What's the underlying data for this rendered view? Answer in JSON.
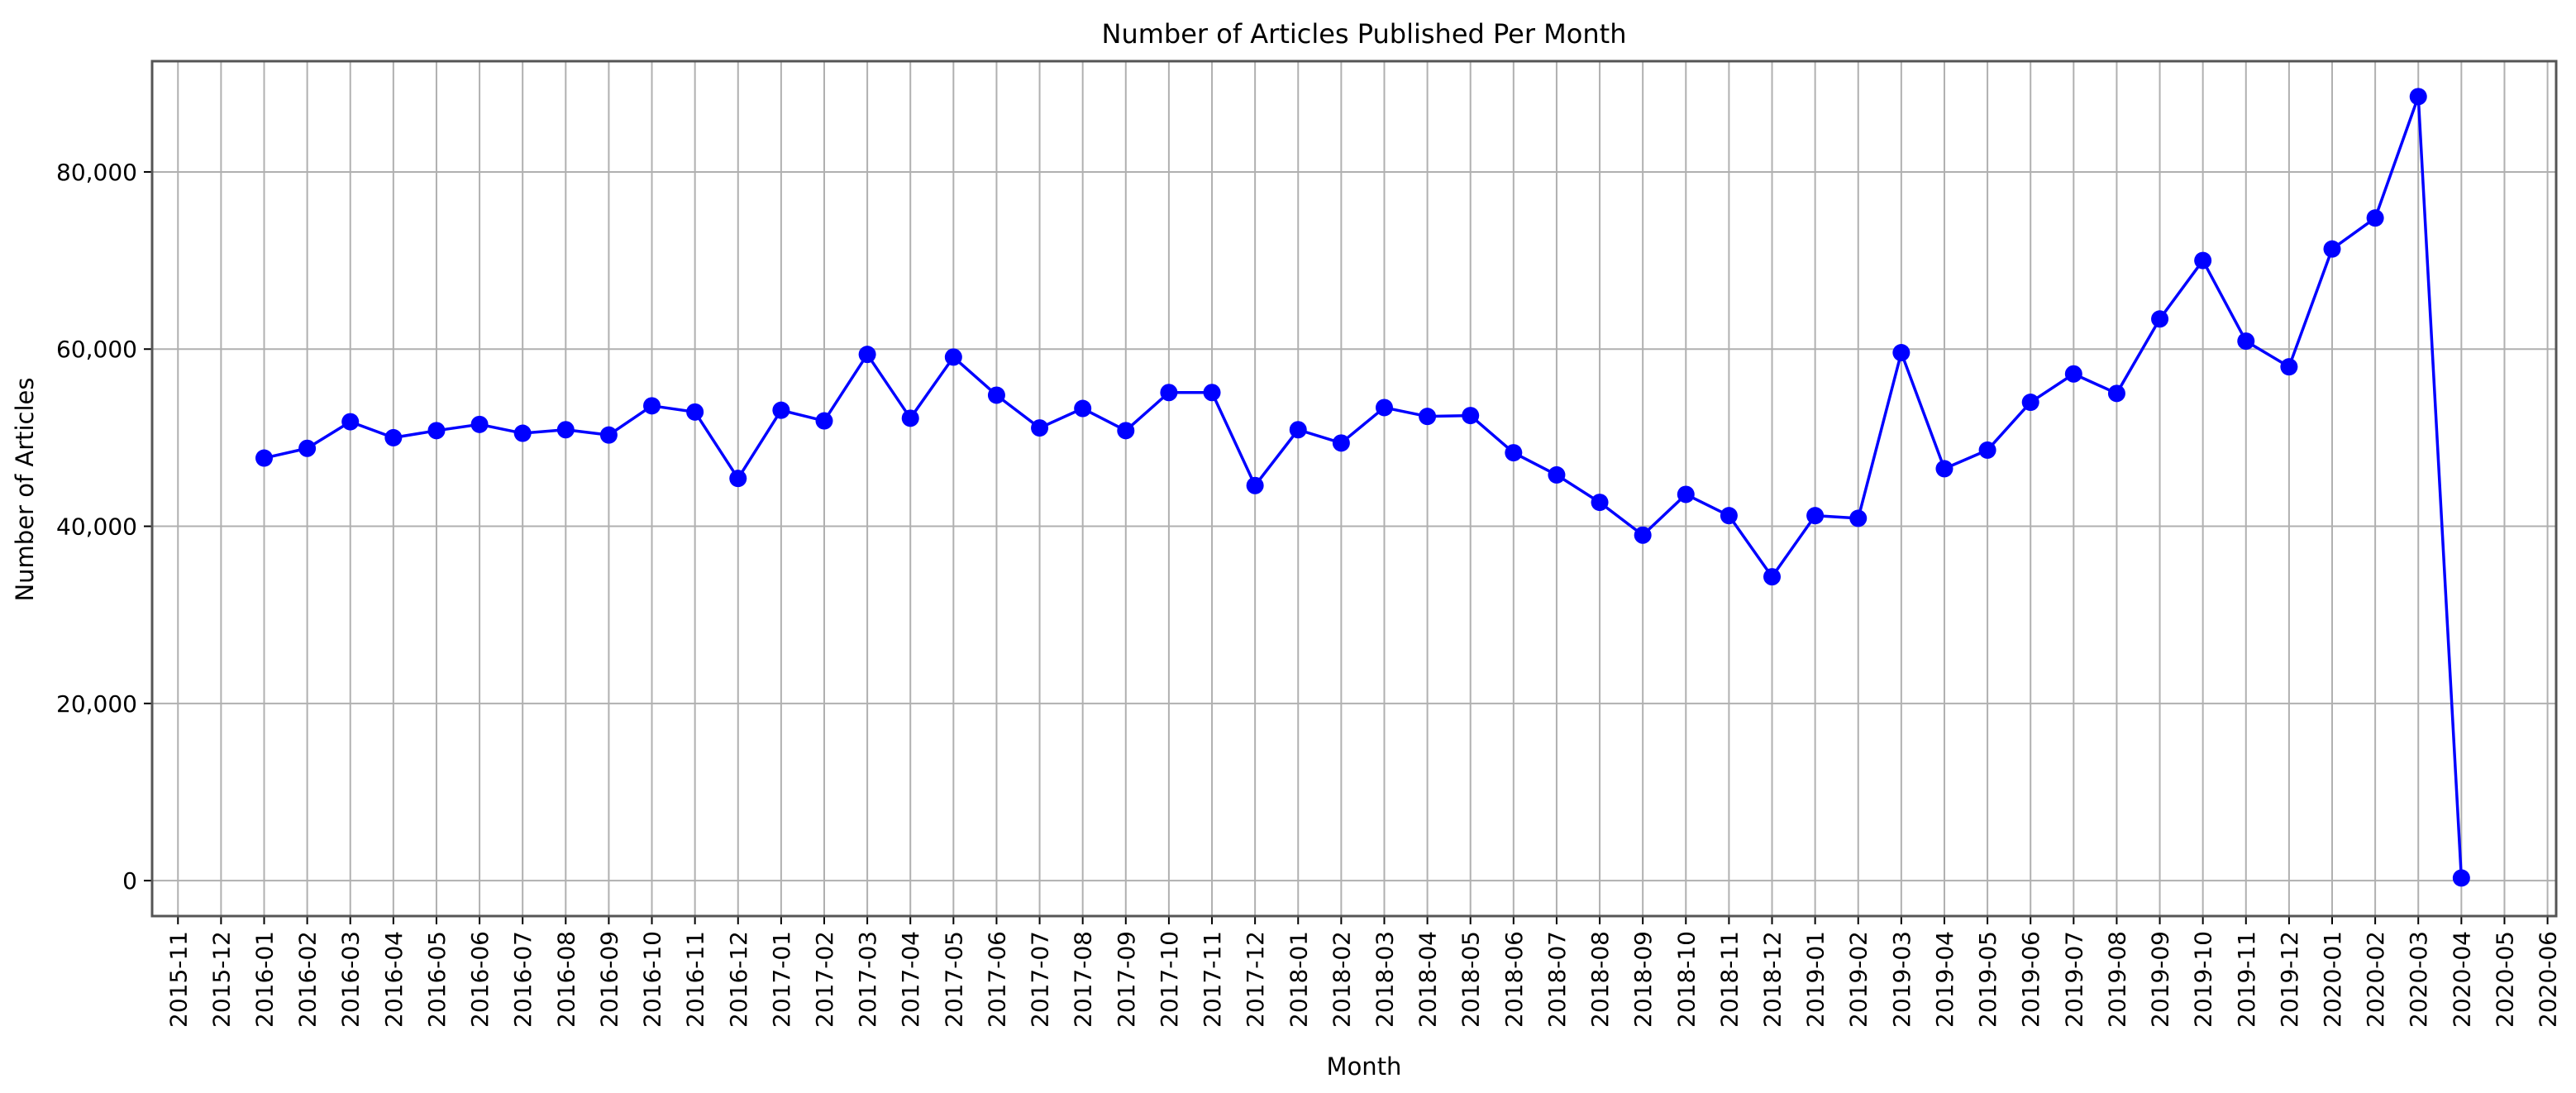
{
  "chart_data": {
    "type": "line",
    "title": "Number of Articles Published Per Month",
    "xlabel": "Month",
    "ylabel": "Number of Articles",
    "x_ticks": [
      "2015-11",
      "2015-12",
      "2016-01",
      "2016-02",
      "2016-03",
      "2016-04",
      "2016-05",
      "2016-06",
      "2016-07",
      "2016-08",
      "2016-09",
      "2016-10",
      "2016-11",
      "2016-12",
      "2017-01",
      "2017-02",
      "2017-03",
      "2017-04",
      "2017-05",
      "2017-06",
      "2017-07",
      "2017-08",
      "2017-09",
      "2017-10",
      "2017-11",
      "2017-12",
      "2018-01",
      "2018-02",
      "2018-03",
      "2018-04",
      "2018-05",
      "2018-06",
      "2018-07",
      "2018-08",
      "2018-09",
      "2018-10",
      "2018-11",
      "2018-12",
      "2019-01",
      "2019-02",
      "2019-03",
      "2019-04",
      "2019-05",
      "2019-06",
      "2019-07",
      "2019-08",
      "2019-09",
      "2019-10",
      "2019-11",
      "2019-12",
      "2020-01",
      "2020-02",
      "2020-03",
      "2020-04",
      "2020-05",
      "2020-06"
    ],
    "y_ticks": [
      0,
      20000,
      40000,
      60000,
      80000
    ],
    "y_tick_labels": [
      "0",
      "20,000",
      "40,000",
      "60,000",
      "80,000"
    ],
    "ylim": [
      -4000,
      92500
    ],
    "grid": true,
    "line_color": "#0000ff",
    "x": [
      "2016-01",
      "2016-02",
      "2016-03",
      "2016-04",
      "2016-05",
      "2016-06",
      "2016-07",
      "2016-08",
      "2016-09",
      "2016-10",
      "2016-11",
      "2016-12",
      "2017-01",
      "2017-02",
      "2017-03",
      "2017-04",
      "2017-05",
      "2017-06",
      "2017-07",
      "2017-08",
      "2017-09",
      "2017-10",
      "2017-11",
      "2017-12",
      "2018-01",
      "2018-02",
      "2018-03",
      "2018-04",
      "2018-05",
      "2018-06",
      "2018-07",
      "2018-08",
      "2018-09",
      "2018-10",
      "2018-11",
      "2018-12",
      "2019-01",
      "2019-02",
      "2019-03",
      "2019-04",
      "2019-05",
      "2019-06",
      "2019-07",
      "2019-08",
      "2019-09",
      "2019-10",
      "2019-11",
      "2019-12",
      "2020-01",
      "2020-02",
      "2020-03",
      "2020-04"
    ],
    "values": [
      47700,
      48800,
      51800,
      50000,
      50800,
      51500,
      50500,
      50900,
      50300,
      53600,
      52900,
      45400,
      53100,
      51900,
      59400,
      52200,
      59100,
      54800,
      51100,
      53300,
      50800,
      55100,
      55100,
      44600,
      50900,
      49400,
      53400,
      52400,
      52500,
      48300,
      45800,
      42700,
      39000,
      43600,
      41200,
      34300,
      41200,
      40900,
      59600,
      46500,
      48600,
      54000,
      57200,
      55000,
      63400,
      70000,
      60900,
      58000,
      71300,
      74800,
      88500,
      300
    ]
  }
}
